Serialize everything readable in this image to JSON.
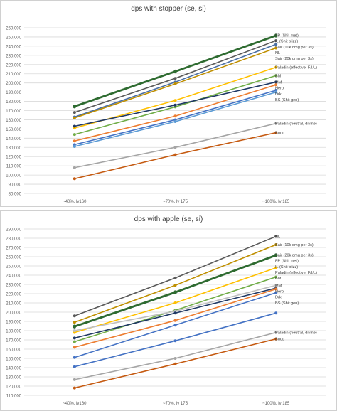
{
  "chart_data": [
    {
      "type": "line",
      "title": "dps with stopper (se, si)",
      "xlabel": "",
      "ylabel": "",
      "categories": [
        "~40%, lv160",
        "~70%, lv 175",
        "~100%, lv 185"
      ],
      "ylim": [
        80000,
        260000
      ],
      "ytick_step": 10000,
      "ytick_labels": [
        "80,000",
        "90,000",
        "100,000",
        "110,000",
        "120,000",
        "130,000",
        "140,000",
        "150,000",
        "160,000",
        "170,000",
        "180,000",
        "190,000",
        "200,000",
        "210,000",
        "220,000",
        "230,000",
        "240,000",
        "250,000",
        "260,000"
      ],
      "grid": true,
      "legend": "inline-right",
      "series": [
        {
          "name": "FP (Shit met)",
          "color": "#2e6b30",
          "values": [
            175000,
            213000,
            252000
          ]
        },
        {
          "name": "IL (Shit blizz)",
          "color": "#2e6b30",
          "values": [
            174000,
            212000,
            251000
          ]
        },
        {
          "name": "Sair (10k dmg per 3s)",
          "color": "#595959",
          "values": [
            168000,
            205000,
            246000
          ]
        },
        {
          "name": "NL",
          "color": "#4a6fa5",
          "values": [
            163000,
            201000,
            242000
          ]
        },
        {
          "name": "Sair (20k dmg per 3s)",
          "color": "#bf8f00",
          "values": [
            162000,
            199000,
            238000
          ]
        },
        {
          "name": "Paladin (effective, F/I/L)",
          "color": "#ffc000",
          "values": [
            151000,
            181000,
            217000
          ]
        },
        {
          "name": "BM",
          "color": "#70ad47",
          "values": [
            144000,
            174000,
            208000
          ]
        },
        {
          "name": "MM",
          "color": "#1f3864",
          "values": [
            153000,
            176000,
            201000
          ]
        },
        {
          "name": "Hero",
          "color": "#ed7d31",
          "values": [
            137000,
            164000,
            198000
          ]
        },
        {
          "name": "Drk",
          "color": "#4472c4",
          "values": [
            133000,
            160000,
            192000
          ]
        },
        {
          "name": "BS (Shit gen)",
          "color": "#5b9bd5",
          "values": [
            131000,
            158000,
            190000
          ]
        },
        {
          "name": "Paladin (neutral, divine)",
          "color": "#a5a5a5",
          "values": [
            108000,
            130000,
            156000
          ]
        },
        {
          "name": "Bucc",
          "color": "#c55a11",
          "values": [
            96000,
            122000,
            146000
          ]
        }
      ]
    },
    {
      "type": "line",
      "title": "dps with apple (se, si)",
      "xlabel": "",
      "ylabel": "",
      "categories": [
        "~40%, lv160",
        "~70%, lv 175",
        "~100%, lv 185"
      ],
      "ylim": [
        110000,
        290000
      ],
      "ytick_step": 10000,
      "ytick_labels": [
        "110,000",
        "120,000",
        "130,000",
        "140,000",
        "150,000",
        "160,000",
        "170,000",
        "180,000",
        "190,000",
        "200,000",
        "210,000",
        "220,000",
        "230,000",
        "240,000",
        "250,000",
        "260,000",
        "270,000",
        "280,000",
        "290,000"
      ],
      "grid": true,
      "legend": "inline-right",
      "series": [
        {
          "name": "NL",
          "color": "#595959",
          "values": [
            196000,
            237000,
            282000
          ]
        },
        {
          "name": "Sair (10k dmg per 3s)",
          "color": "#bf8f00",
          "values": [
            189000,
            229000,
            273000
          ]
        },
        {
          "name": "Sair (20k dmg per 3s)",
          "color": "#4a6fa5",
          "values": [
            184000,
            221000,
            262000
          ]
        },
        {
          "name": "FP (Shit met)",
          "color": "#2e6b30",
          "values": [
            185000,
            222000,
            262000
          ]
        },
        {
          "name": "IL (Shit blizz)",
          "color": "#2e6b30",
          "values": [
            184000,
            221000,
            261000
          ]
        },
        {
          "name": "Paladin (effective, F/I/L)",
          "color": "#ffc000",
          "values": [
            178000,
            210000,
            248000
          ]
        },
        {
          "name": "BM",
          "color": "#70ad47",
          "values": [
            168000,
            202000,
            238000
          ]
        },
        {
          "name": "MM",
          "color": "#bfbfbf",
          "values": [
            180000,
            201000,
            229000
          ]
        },
        {
          "name": "Hero",
          "color": "#1f3864",
          "values": [
            172000,
            199000,
            226000
          ]
        },
        {
          "name": "Drk",
          "color": "#ed7d31",
          "values": [
            162000,
            191000,
            225000
          ]
        },
        {
          "name": "BS (Shit gen)",
          "color": "#4472c4",
          "values": [
            151000,
            186000,
            221000
          ]
        },
        {
          "name": "",
          "color": "#4472c4",
          "values": [
            141000,
            169000,
            199000
          ]
        },
        {
          "name": "Paladin (neutral, divine)",
          "color": "#a5a5a5",
          "values": [
            127000,
            150000,
            178000
          ]
        },
        {
          "name": "Bucc",
          "color": "#c55a11",
          "values": [
            118000,
            144000,
            171000
          ]
        }
      ]
    }
  ]
}
